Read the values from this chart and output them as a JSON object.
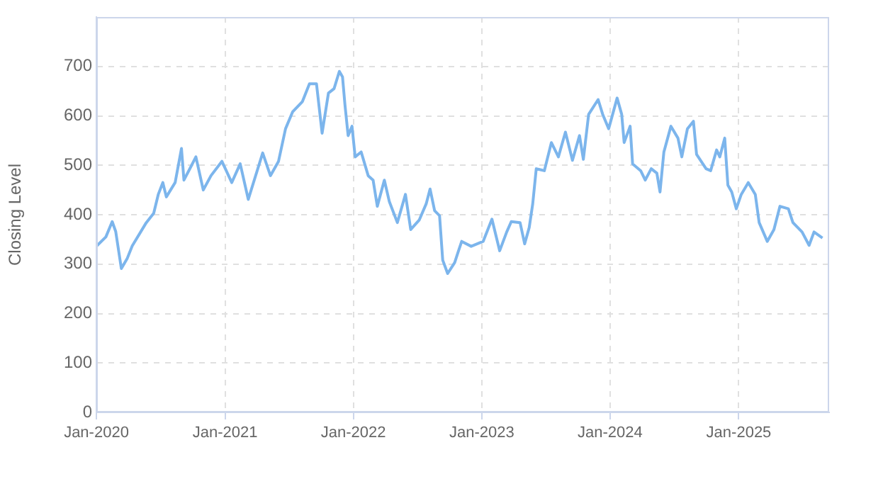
{
  "chart_data": {
    "type": "line",
    "ylabel": "Closing Level",
    "legend": false,
    "grid": true,
    "marker": "none",
    "line_style": "solid",
    "xlim": [
      "2020-01-01",
      "2025-09-15"
    ],
    "xticks": [
      {
        "value": "2020-01-01",
        "label": "Jan-2020"
      },
      {
        "value": "2021-01-01",
        "label": "Jan-2021"
      },
      {
        "value": "2022-01-01",
        "label": "Jan-2022"
      },
      {
        "value": "2023-01-01",
        "label": "Jan-2023"
      },
      {
        "value": "2024-01-01",
        "label": "Jan-2024"
      },
      {
        "value": "2025-01-01",
        "label": "Jan-2025"
      }
    ],
    "ylim": [
      0,
      800
    ],
    "yticks": [
      0,
      100,
      200,
      300,
      400,
      500,
      600,
      700
    ],
    "x": [
      "2020-01-01",
      "2020-01-28",
      "2020-02-15",
      "2020-02-25",
      "2020-03-12",
      "2020-03-29",
      "2020-04-12",
      "2020-05-22",
      "2020-06-12",
      "2020-06-25",
      "2020-07-08",
      "2020-07-18",
      "2020-08-12",
      "2020-08-30",
      "2020-09-06",
      "2020-09-25",
      "2020-10-10",
      "2020-10-31",
      "2020-11-22",
      "2020-12-23",
      "2021-01-20",
      "2021-02-13",
      "2021-03-08",
      "2021-04-18",
      "2021-05-10",
      "2021-06-02",
      "2021-06-22",
      "2021-07-12",
      "2021-08-09",
      "2021-08-29",
      "2021-09-18",
      "2021-10-04",
      "2021-10-22",
      "2021-11-07",
      "2021-11-22",
      "2021-12-01",
      "2021-12-08",
      "2021-12-17",
      "2021-12-28",
      "2022-01-06",
      "2022-01-23",
      "2022-02-12",
      "2022-02-26",
      "2022-03-10",
      "2022-03-30",
      "2022-04-13",
      "2022-05-06",
      "2022-05-29",
      "2022-06-13",
      "2022-07-07",
      "2022-07-27",
      "2022-08-07",
      "2022-08-20",
      "2022-09-03",
      "2022-09-12",
      "2022-09-26",
      "2022-10-16",
      "2022-10-27",
      "2022-11-05",
      "2022-12-02",
      "2023-01-05",
      "2023-01-30",
      "2023-02-21",
      "2023-03-13",
      "2023-03-26",
      "2023-04-20",
      "2023-05-03",
      "2023-05-16",
      "2023-05-26",
      "2023-06-05",
      "2023-06-28",
      "2023-07-18",
      "2023-08-07",
      "2023-08-27",
      "2023-09-16",
      "2023-10-06",
      "2023-10-17",
      "2023-11-01",
      "2023-11-28",
      "2023-12-11",
      "2023-12-28",
      "2024-01-21",
      "2024-02-03",
      "2024-02-10",
      "2024-02-27",
      "2024-03-05",
      "2024-03-28",
      "2024-04-10",
      "2024-04-27",
      "2024-05-13",
      "2024-05-22",
      "2024-06-02",
      "2024-06-22",
      "2024-07-12",
      "2024-07-23",
      "2024-08-08",
      "2024-08-25",
      "2024-09-03",
      "2024-09-30",
      "2024-10-13",
      "2024-10-30",
      "2024-11-08",
      "2024-11-22",
      "2024-12-01",
      "2024-12-12",
      "2024-12-25",
      "2025-01-08",
      "2025-01-28",
      "2025-02-17",
      "2025-02-28",
      "2025-03-23",
      "2025-04-11",
      "2025-04-28",
      "2025-05-22",
      "2025-06-04",
      "2025-06-30",
      "2025-07-20",
      "2025-08-03",
      "2025-08-27"
    ],
    "series": [
      {
        "color": "#7cb5ec",
        "values": [
          336,
          355,
          386,
          366,
          291,
          312,
          337,
          384,
          403,
          441,
          465,
          436,
          465,
          534,
          470,
          496,
          517,
          450,
          479,
          508,
          465,
          503,
          431,
          525,
          479,
          508,
          574,
          608,
          629,
          665,
          665,
          565,
          646,
          655,
          690,
          679,
          622,
          560,
          579,
          517,
          527,
          479,
          470,
          417,
          470,
          427,
          384,
          441,
          370,
          389,
          422,
          452,
          408,
          398,
          308,
          281,
          303,
          327,
          346,
          336,
          346,
          391,
          327,
          365,
          386,
          384,
          341,
          374,
          422,
          493,
          489,
          546,
          517,
          567,
          510,
          560,
          512,
          603,
          633,
          603,
          574,
          636,
          603,
          546,
          579,
          503,
          489,
          470,
          493,
          484,
          446,
          527,
          579,
          555,
          517,
          574,
          589,
          522,
          493,
          489,
          531,
          517,
          555,
          460,
          446,
          412,
          441,
          465,
          441,
          384,
          346,
          370,
          417,
          412,
          384,
          365,
          338,
          365,
          353
        ]
      }
    ]
  }
}
